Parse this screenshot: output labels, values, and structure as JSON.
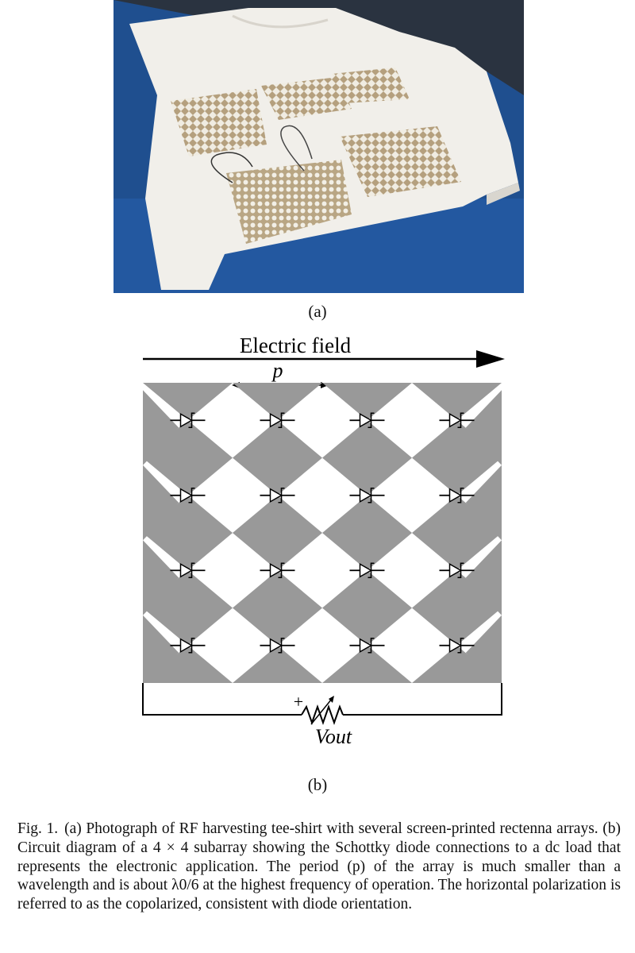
{
  "figure": {
    "subfig_a_label": "(a)",
    "subfig_b_label": "(b)",
    "diagram": {
      "field_label": "Electric field",
      "period_label": "p",
      "output_label": "Vout",
      "polarity": "+",
      "rows": 4,
      "cols": 4,
      "patch_color": "#999999"
    },
    "caption": {
      "number": "Fig. 1.",
      "text": "(a) Photograph of RF harvesting tee-shirt with several screen-printed rectenna arrays. (b) Circuit diagram of a 4 × 4 subarray showing the Schottky diode connections to a dc load that represents the electronic application. The period (p) of the array is much smaller than a wavelength and is about λ0/6 at the highest frequency of operation. The horizontal polarization is referred to as the copolarized, consistent with diode orientation."
    }
  }
}
